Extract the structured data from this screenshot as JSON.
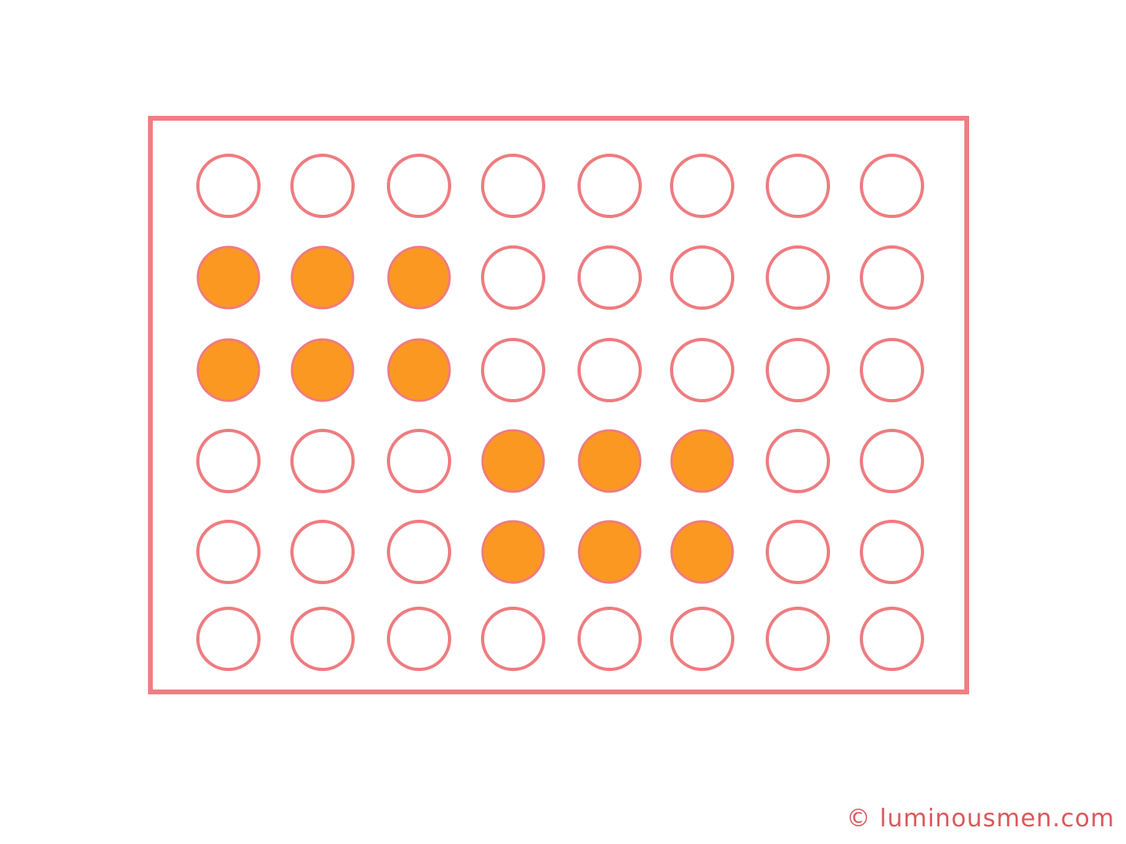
{
  "colors": {
    "frame": "#ef7f82",
    "circle_outline": "#ee7c80",
    "circle_fill": "#fb9822",
    "watermark": "#d9585b"
  },
  "grid": {
    "rows": 6,
    "cols": 8,
    "filled": [
      [
        false,
        false,
        false,
        false,
        false,
        false,
        false,
        false
      ],
      [
        true,
        true,
        true,
        false,
        false,
        false,
        false,
        false
      ],
      [
        true,
        true,
        true,
        false,
        false,
        false,
        false,
        false
      ],
      [
        false,
        false,
        false,
        true,
        true,
        true,
        false,
        false
      ],
      [
        false,
        false,
        false,
        true,
        true,
        true,
        false,
        false
      ],
      [
        false,
        false,
        false,
        false,
        false,
        false,
        false,
        false
      ]
    ]
  },
  "watermark": {
    "text": "© luminousmen.com"
  }
}
